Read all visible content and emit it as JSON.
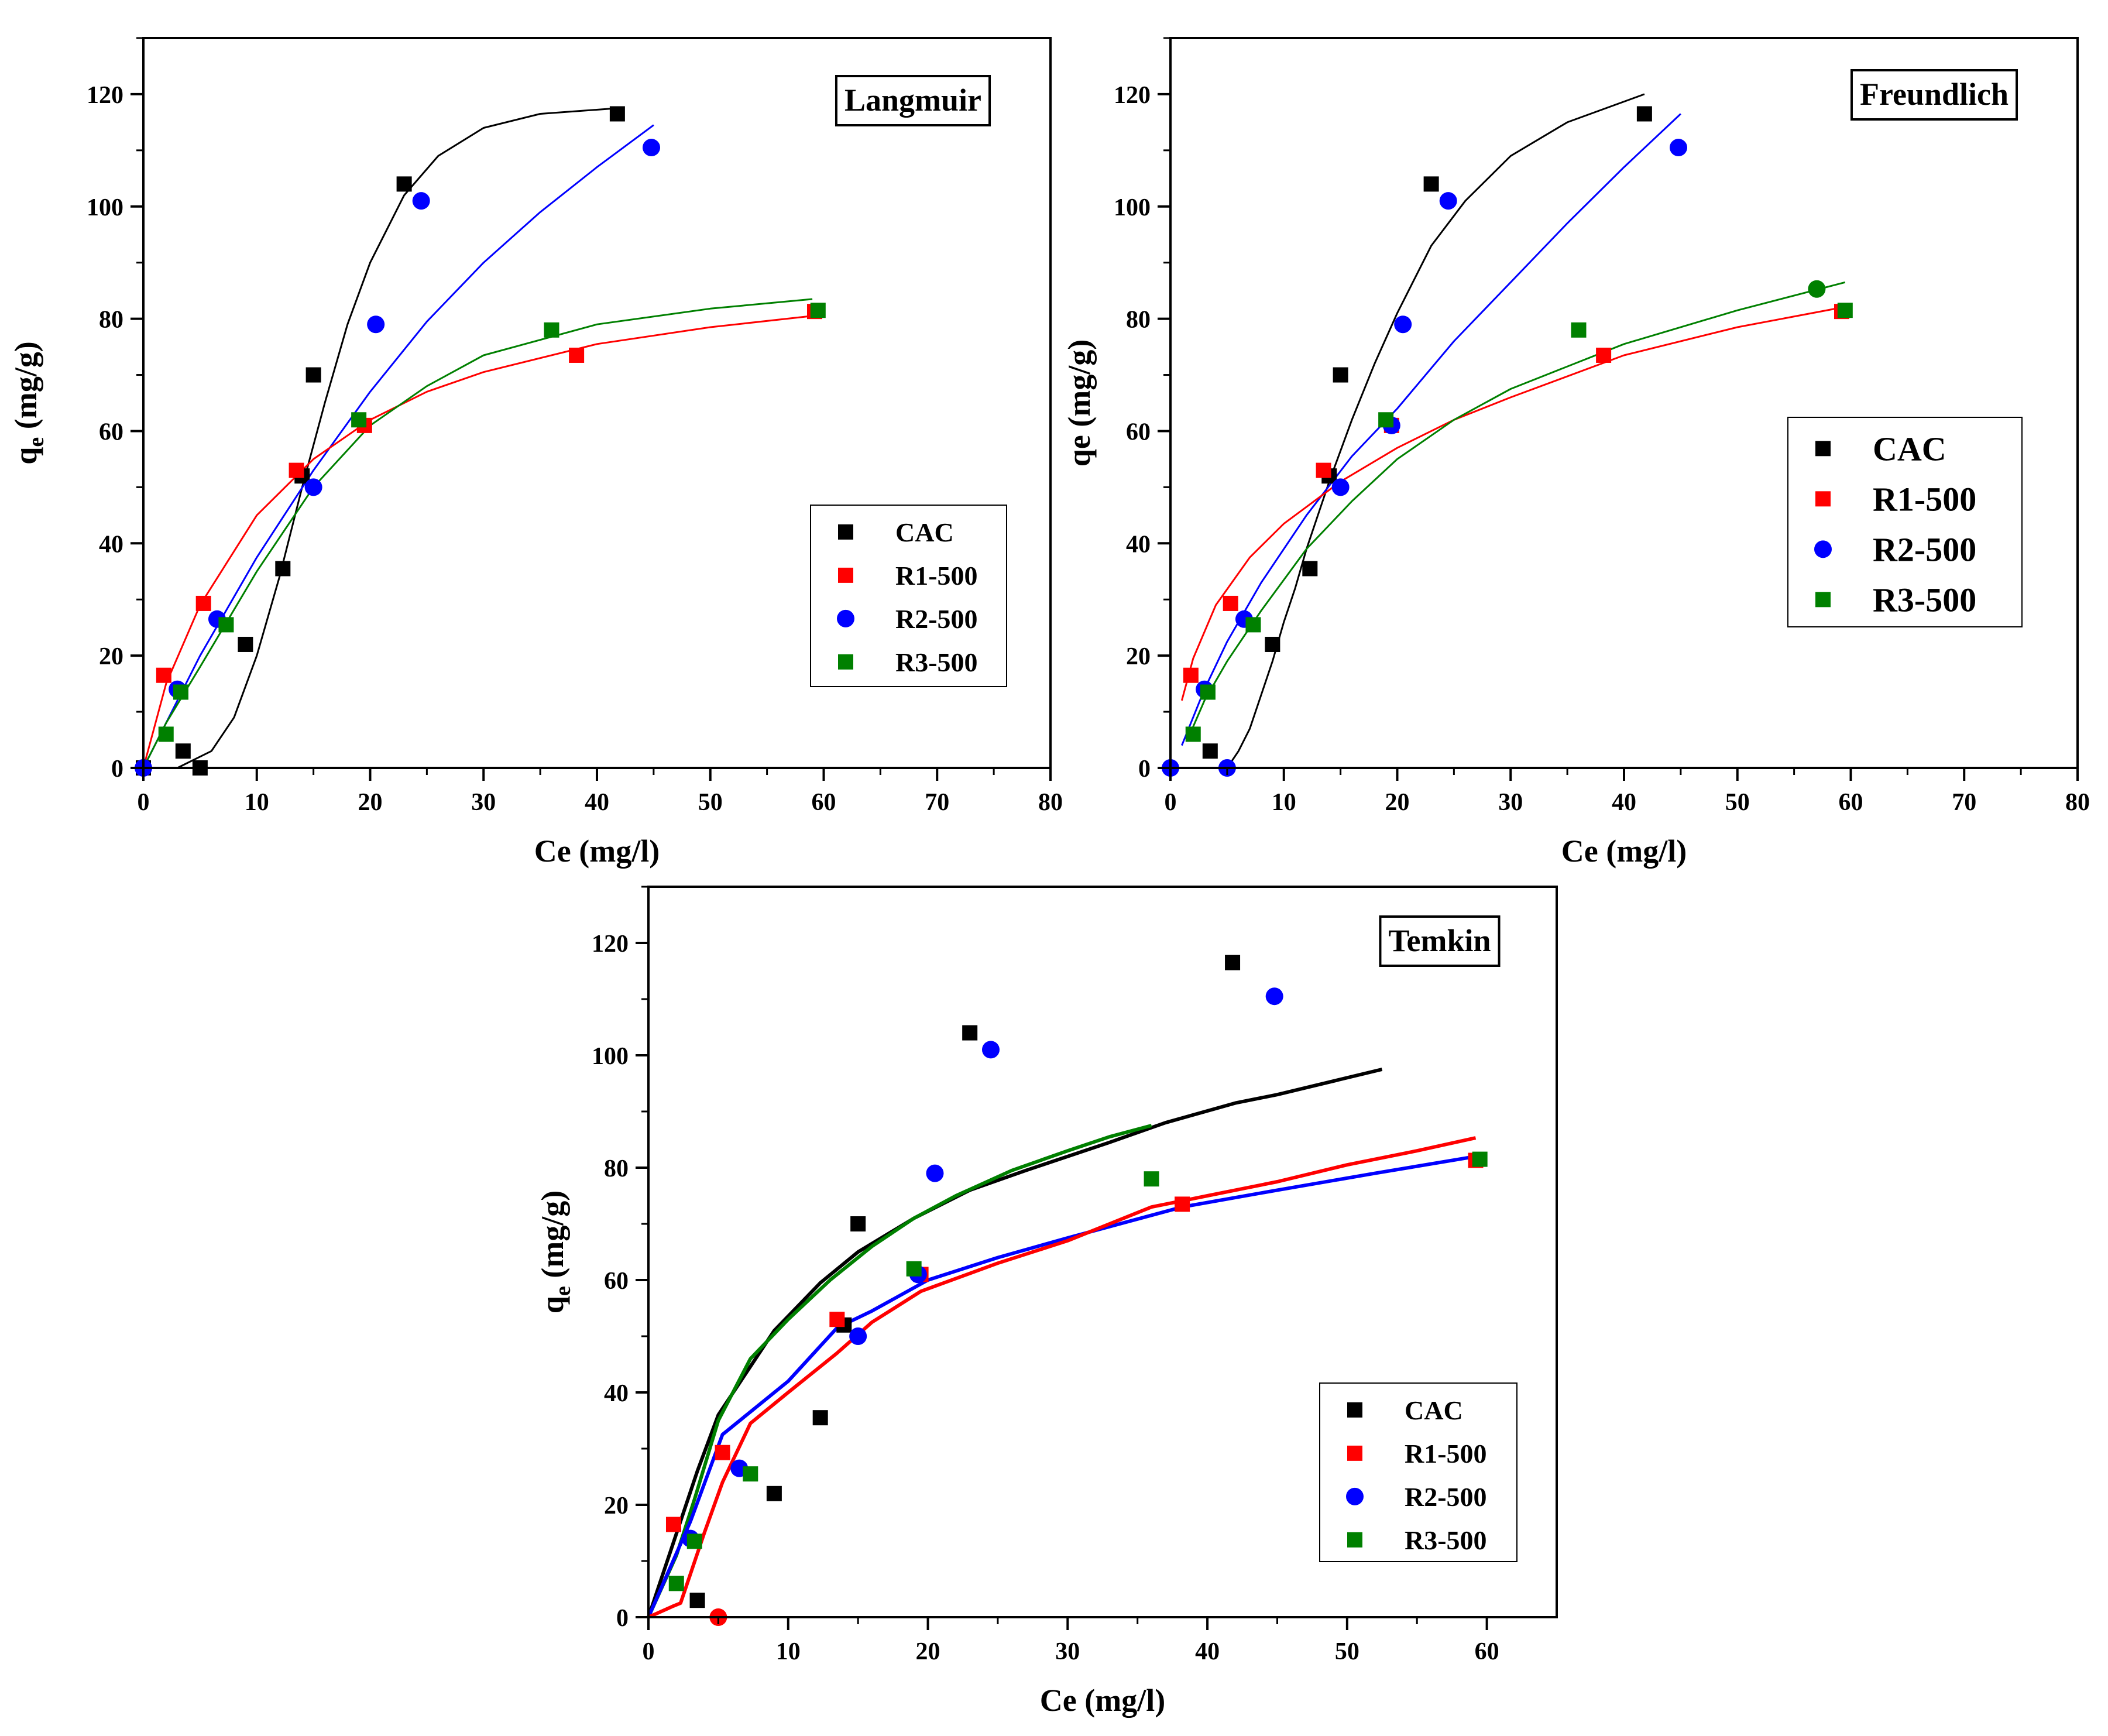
{
  "chart_data": [
    {
      "type": "scatter",
      "title": "Langmuir",
      "xlabel": "Ce (mg/l)",
      "ylabel": "q",
      "ylabel_sub": "e",
      "ylabel_tail": " (mg/g)",
      "xlim": [
        0,
        80
      ],
      "ylim": [
        0,
        130
      ],
      "xticks": [
        0,
        10,
        20,
        30,
        40,
        50,
        60,
        70,
        80
      ],
      "yticks": [
        0,
        20,
        40,
        60,
        80,
        100,
        120
      ],
      "legend_position": "lower-right",
      "series": [
        {
          "name": "CAC",
          "color": "#000000",
          "marker": "square",
          "x": [
            0,
            3.5,
            5,
            9,
            12.3,
            14,
            15,
            23,
            41.8
          ],
          "y": [
            0,
            3,
            0,
            22,
            35.5,
            52,
            70,
            104,
            116.5
          ]
        },
        {
          "name": "R1-500",
          "color": "#ff0000",
          "marker": "square",
          "x": [
            1.8,
            5.3,
            13.5,
            19.5,
            38.2,
            59.2
          ],
          "y": [
            16.5,
            29.3,
            53,
            61,
            73.5,
            81.3
          ]
        },
        {
          "name": "R2-500",
          "color": "#0000ff",
          "marker": "circle",
          "x": [
            0,
            3,
            6.5,
            15,
            20.5,
            24.5,
            44.8
          ],
          "y": [
            0,
            14,
            26.5,
            50,
            79,
            101,
            110.5
          ]
        },
        {
          "name": "R3-500",
          "color": "#008000",
          "marker": "square",
          "x": [
            2,
            3.3,
            7.3,
            19,
            36,
            59.5
          ],
          "y": [
            6,
            13.5,
            25.5,
            62,
            78,
            81.5
          ]
        }
      ],
      "fits": [
        {
          "color": "#000000",
          "x": [
            3,
            6,
            8,
            10,
            12,
            14,
            16,
            18,
            20,
            23,
            26,
            30,
            35,
            41.8
          ],
          "y": [
            0,
            3,
            9,
            20,
            34,
            50,
            65,
            79,
            90,
            102,
            109,
            114,
            116.5,
            117.5
          ]
        },
        {
          "color": "#0000ff",
          "x": [
            0,
            5,
            10,
            15,
            20,
            25,
            30,
            35,
            40,
            45
          ],
          "y": [
            0,
            20,
            37.5,
            53,
            67,
            79.5,
            90,
            99,
            107,
            114.5
          ]
        },
        {
          "color": "#ff0000",
          "x": [
            0,
            2,
            5,
            10,
            15,
            20,
            25,
            30,
            40,
            50,
            59
          ],
          "y": [
            0,
            15,
            29,
            45,
            55,
            62,
            67,
            70.5,
            75.5,
            78.5,
            80.5
          ]
        },
        {
          "color": "#008000",
          "x": [
            0,
            2,
            5,
            10,
            15,
            20,
            25,
            30,
            40,
            50,
            59
          ],
          "y": [
            0,
            8,
            18,
            35,
            50,
            61,
            68,
            73.5,
            79,
            81.8,
            83.5
          ]
        }
      ]
    },
    {
      "type": "scatter",
      "title": "Freundlich",
      "xlabel": "Ce (mg/l)",
      "ylabel": "qe (mg/g)",
      "xlim": [
        0,
        80
      ],
      "ylim": [
        0,
        130
      ],
      "xticks": [
        0,
        10,
        20,
        30,
        40,
        50,
        60,
        70,
        80
      ],
      "yticks": [
        0,
        20,
        40,
        60,
        80,
        100,
        120
      ],
      "legend_position": "center-right",
      "series": [
        {
          "name": "CAC",
          "color": "#000000",
          "marker": "square",
          "x": [
            3.5,
            9,
            12.3,
            14,
            15,
            23,
            41.8
          ],
          "y": [
            3,
            22,
            35.5,
            52,
            70,
            104,
            116.5
          ]
        },
        {
          "name": "R1-500",
          "color": "#ff0000",
          "marker": "square",
          "x": [
            1.8,
            5.3,
            13.5,
            19.5,
            38.2,
            59.2
          ],
          "y": [
            16.5,
            29.3,
            53,
            61,
            73.5,
            81.3
          ]
        },
        {
          "name": "R2-500",
          "color": "#0000ff",
          "marker": "circle",
          "x": [
            0,
            3,
            5,
            6.5,
            15,
            19.5,
            20.5,
            24.5,
            44.8
          ],
          "y": [
            0,
            14,
            0,
            26.5,
            50,
            61,
            79,
            101,
            110.5
          ]
        },
        {
          "name": "R3-500",
          "color": "#008000",
          "marker": "square",
          "x": [
            2,
            3.3,
            7.3,
            19,
            36,
            59.5
          ],
          "y": [
            6,
            13.5,
            25.5,
            62,
            78,
            81.5
          ]
        },
        {
          "name": "",
          "color": "#008000",
          "marker": "circle",
          "x": [
            57
          ],
          "y": [
            85.3
          ]
        }
      ],
      "fits": [
        {
          "color": "#000000",
          "x": [
            5,
            6,
            7,
            8,
            9,
            10,
            11,
            12,
            13,
            14,
            16,
            18,
            20,
            23,
            26,
            30,
            35,
            41.8
          ],
          "y": [
            0,
            3,
            7,
            13,
            19,
            26,
            32,
            39,
            45,
            51,
            62,
            72,
            81,
            93,
            101,
            109,
            115,
            120
          ]
        },
        {
          "color": "#0000ff",
          "x": [
            1,
            3,
            5,
            8,
            12,
            16,
            20,
            25,
            30,
            35,
            40,
            45
          ],
          "y": [
            4,
            14,
            22.5,
            33,
            45,
            55.5,
            64,
            76,
            86.5,
            97,
            107,
            116.5
          ]
        },
        {
          "color": "#ff0000",
          "x": [
            1,
            2,
            4,
            7,
            10,
            15,
            20,
            25,
            30,
            40,
            50,
            59.2
          ],
          "y": [
            12,
            19.5,
            29,
            37.5,
            43.5,
            51,
            57,
            62,
            66,
            73.5,
            78.5,
            82
          ]
        },
        {
          "color": "#008000",
          "x": [
            1.5,
            3,
            5,
            8,
            12,
            16,
            20,
            25,
            30,
            40,
            50,
            59.5
          ],
          "y": [
            5,
            12,
            19,
            28,
            39,
            47.5,
            55,
            62,
            67.5,
            75.5,
            81.5,
            86.5
          ]
        }
      ]
    },
    {
      "type": "scatter",
      "title": "Temkin",
      "xlabel": "Ce (mg/l)",
      "ylabel": "q",
      "ylabel_sub": "e",
      "ylabel_tail": " (mg/g)",
      "xlim": [
        0,
        65
      ],
      "ylim": [
        0,
        130
      ],
      "xticks": [
        0,
        10,
        20,
        30,
        40,
        50,
        60
      ],
      "yticks": [
        0,
        20,
        40,
        60,
        80,
        100,
        120
      ],
      "legend_position": "lower-right",
      "series": [
        {
          "name": "CAC",
          "color": "#000000",
          "marker": "square",
          "x": [
            3.5,
            9,
            12.3,
            14,
            15,
            23,
            41.8
          ],
          "y": [
            3,
            22,
            35.5,
            52,
            70,
            104,
            116.5
          ]
        },
        {
          "name": "R1-500",
          "color": "#ff0000",
          "marker": "square",
          "x": [
            1.8,
            5.3,
            13.5,
            19.5,
            38.2,
            59.2
          ],
          "y": [
            16.5,
            29.3,
            53,
            61,
            73.5,
            81.3
          ]
        },
        {
          "name": "R2-500",
          "color": "#0000ff",
          "marker": "circle",
          "x": [
            3,
            6.5,
            15,
            19.3,
            20.5,
            24.5,
            44.8
          ],
          "y": [
            14,
            26.5,
            50,
            61,
            79,
            101,
            110.5
          ]
        },
        {
          "name": "R3-500",
          "color": "#008000",
          "marker": "square",
          "x": [
            2,
            3.3,
            7.3,
            19,
            36,
            59.5
          ],
          "y": [
            6,
            13.5,
            25.5,
            62,
            78,
            81.5
          ]
        },
        {
          "name": "",
          "color": "#ff0000",
          "marker": "circle",
          "x": [
            5
          ],
          "y": [
            0
          ]
        }
      ],
      "fits": [
        {
          "color": "#000000",
          "x": [
            0,
            3.5,
            5,
            9,
            12.3,
            15,
            19,
            23,
            27,
            33,
            37,
            42,
            45,
            52.5
          ],
          "y": [
            0,
            26,
            36,
            51,
            59.5,
            65,
            71,
            76,
            79.5,
            84.5,
            88,
            91.5,
            93,
            97.5
          ]
        },
        {
          "color": "#008000",
          "x": [
            0,
            2,
            3.3,
            5,
            7.3,
            10,
            13,
            16,
            19,
            22,
            26,
            30,
            33,
            36
          ],
          "y": [
            0,
            11,
            21,
            35,
            46,
            53,
            60,
            66,
            71,
            75,
            79.5,
            83,
            85.5,
            87.5
          ]
        },
        {
          "color": "#0000ff",
          "x": [
            0,
            3,
            5.3,
            10,
            13.5,
            16,
            20,
            25,
            30,
            38.2,
            45,
            52,
            59.2
          ],
          "y": [
            0,
            17,
            32.5,
            42,
            51.5,
            54.5,
            60,
            64,
            67.5,
            73,
            76,
            79,
            82
          ]
        },
        {
          "color": "#ff0000",
          "x": [
            0,
            1.8,
            2.3,
            4,
            5.3,
            7.3,
            10,
            13.5,
            16,
            19.5,
            25,
            30,
            36,
            40,
            45,
            50,
            55,
            59.2
          ],
          "y": [
            0,
            2,
            2.5,
            15,
            24,
            34.5,
            40,
            47,
            52.5,
            58,
            63,
            67,
            73,
            75,
            77.5,
            80.5,
            83,
            85.3
          ]
        }
      ]
    }
  ]
}
